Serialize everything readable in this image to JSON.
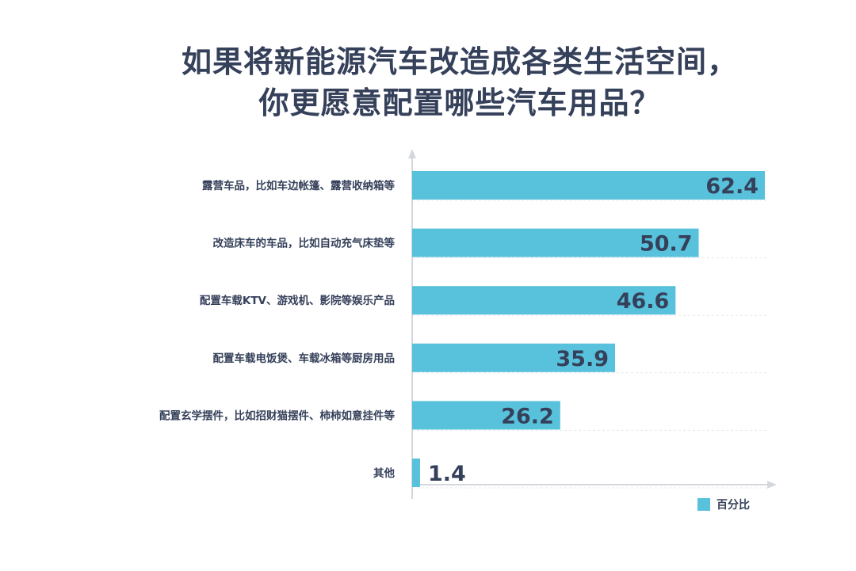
{
  "colors": {
    "bar": "#58c1dc",
    "text": "#35405a",
    "axis": "#d4d7dd",
    "grid": "#e6e8ec"
  },
  "chart_data": {
    "type": "bar",
    "orientation": "horizontal",
    "title_lines": [
      "如果将新能源汽车改造成各类生活空间，",
      "你更愿意配置哪些汽车用品？"
    ],
    "categories": [
      "露营车品，比如车边帐篷、露营收纳箱等",
      "改造床车的车品，比如自动充气床垫等",
      "配置车载KTV、游戏机、影院等娱乐产品",
      "配置车载电饭煲、车载冰箱等厨房用品",
      "配置玄学摆件，比如招财猫摆件、柿柿如意挂件等",
      "其他"
    ],
    "series": [
      {
        "name": "百分比",
        "values": [
          62.4,
          50.7,
          46.6,
          35.9,
          26.2,
          1.4
        ]
      }
    ],
    "value_labels": [
      "62.4",
      "50.7",
      "46.6",
      "35.9",
      "26.2",
      "1.4"
    ],
    "xlim": [
      0,
      70
    ],
    "grid": true,
    "legend_position": "bottom-right"
  }
}
